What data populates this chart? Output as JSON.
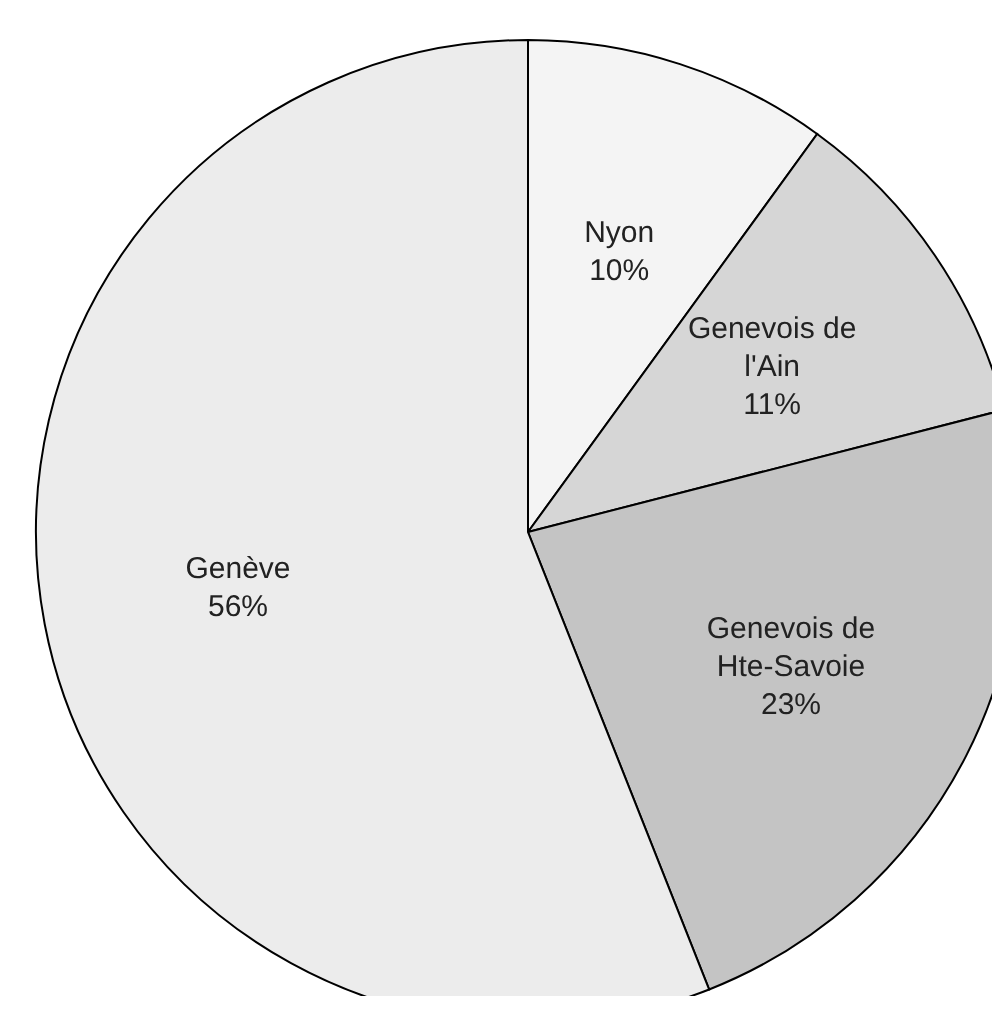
{
  "chart_data": {
    "type": "pie",
    "categories": [
      "Nyon",
      "Genevois de l'Ain",
      "Genevois de Hte-Savoie",
      "Genève"
    ],
    "values": [
      10,
      11,
      23,
      56
    ],
    "colors": [
      "#f4f4f4",
      "#d6d6d6",
      "#c4c4c4",
      "#ececec"
    ],
    "value_labels": [
      "10%",
      "11%",
      "23%",
      "56%"
    ],
    "legend": false
  }
}
